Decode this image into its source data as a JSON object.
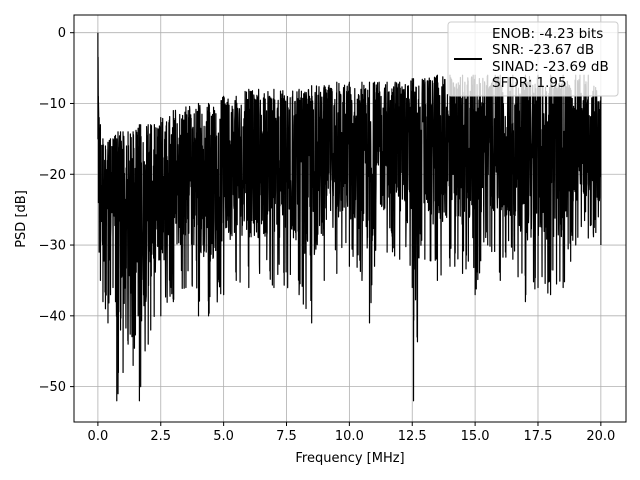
{
  "chart_data": {
    "type": "line",
    "title": "",
    "xlabel": "Frequency [MHz]",
    "ylabel": "PSD [dB]",
    "xlim": [
      -0.95,
      21.0
    ],
    "ylim": [
      -55.0,
      2.5
    ],
    "xticks": [
      0.0,
      2.5,
      5.0,
      7.5,
      10.0,
      12.5,
      15.0,
      17.5,
      20.0
    ],
    "xtick_labels": [
      "0.0",
      "2.5",
      "5.0",
      "7.5",
      "10.0",
      "12.5",
      "15.0",
      "17.5",
      "20.0"
    ],
    "yticks": [
      0,
      -10,
      -20,
      -30,
      -40,
      -50
    ],
    "ytick_labels": [
      "0",
      "−10",
      "−20",
      "−30",
      "−40",
      "−50"
    ],
    "grid": true,
    "legend_position": "top-right",
    "line_color": "#000000",
    "series": [
      {
        "legend_lines": [
          "ENOB: -4.23 bits",
          "SNR: -23.67 dB",
          "SINAD: -23.69 dB",
          "SFDR: 1.95"
        ],
        "x": [
          0.0,
          0.02,
          0.05,
          0.1,
          0.2,
          0.3,
          0.4,
          0.5,
          0.6,
          0.7,
          0.75,
          0.8,
          0.9,
          1.0,
          1.2,
          1.4,
          1.6,
          1.65,
          1.7,
          2.0,
          2.1,
          2.5,
          3.0,
          3.5,
          4.0,
          4.4,
          5.0,
          5.5,
          6.0,
          7.0,
          8.0,
          8.5,
          9.0,
          9.5,
          10.0,
          10.5,
          10.8,
          11.0,
          11.5,
          12.0,
          12.5,
          12.55,
          13.0,
          13.5,
          14.0,
          14.5,
          15.0,
          15.5,
          16.0,
          16.5,
          17.0,
          17.5,
          18.0,
          18.5,
          19.0,
          19.5,
          20.0
        ],
        "y_max": [
          0.0,
          -9.0,
          -12.0,
          -13.0,
          -15.0,
          -16.0,
          -15.5,
          -15.0,
          -15.0,
          -14.5,
          -15.0,
          -14.0,
          -14.0,
          -14.0,
          -14.0,
          -14.0,
          -13.5,
          -13.0,
          -13.0,
          -13.0,
          -13.0,
          -12.0,
          -11.0,
          -10.5,
          -10.0,
          -10.0,
          -9.0,
          -9.0,
          -8.0,
          -8.0,
          -8.0,
          -7.5,
          -7.5,
          -7.0,
          -7.0,
          -7.0,
          -7.0,
          -7.0,
          -7.0,
          -7.0,
          -6.5,
          -6.5,
          -6.5,
          -6.0,
          -6.0,
          -6.0,
          -6.0,
          -6.0,
          -6.0,
          -6.0,
          -6.0,
          -6.0,
          -6.0,
          -6.0,
          -6.0,
          -6.0,
          -9.0
        ],
        "y_min": [
          -15.0,
          -24.0,
          -31.0,
          -35.0,
          -38.0,
          -39.0,
          -41.0,
          -37.0,
          -36.0,
          -38.0,
          -52.0,
          -51.0,
          -42.0,
          -48.0,
          -44.0,
          -47.0,
          -40.0,
          -52.0,
          -50.0,
          -44.0,
          -42.0,
          -40.0,
          -38.0,
          -36.0,
          -40.0,
          -40.0,
          -37.0,
          -35.0,
          -36.0,
          -36.0,
          -37.0,
          -41.0,
          -35.0,
          -34.0,
          -33.0,
          -35.0,
          -41.0,
          -33.0,
          -31.0,
          -32.0,
          -36.0,
          -52.0,
          -32.0,
          -35.0,
          -33.0,
          -34.0,
          -37.0,
          -30.0,
          -35.0,
          -32.0,
          -38.0,
          -36.0,
          -37.0,
          -36.0,
          -30.0,
          -29.0,
          -30.0
        ]
      }
    ]
  }
}
